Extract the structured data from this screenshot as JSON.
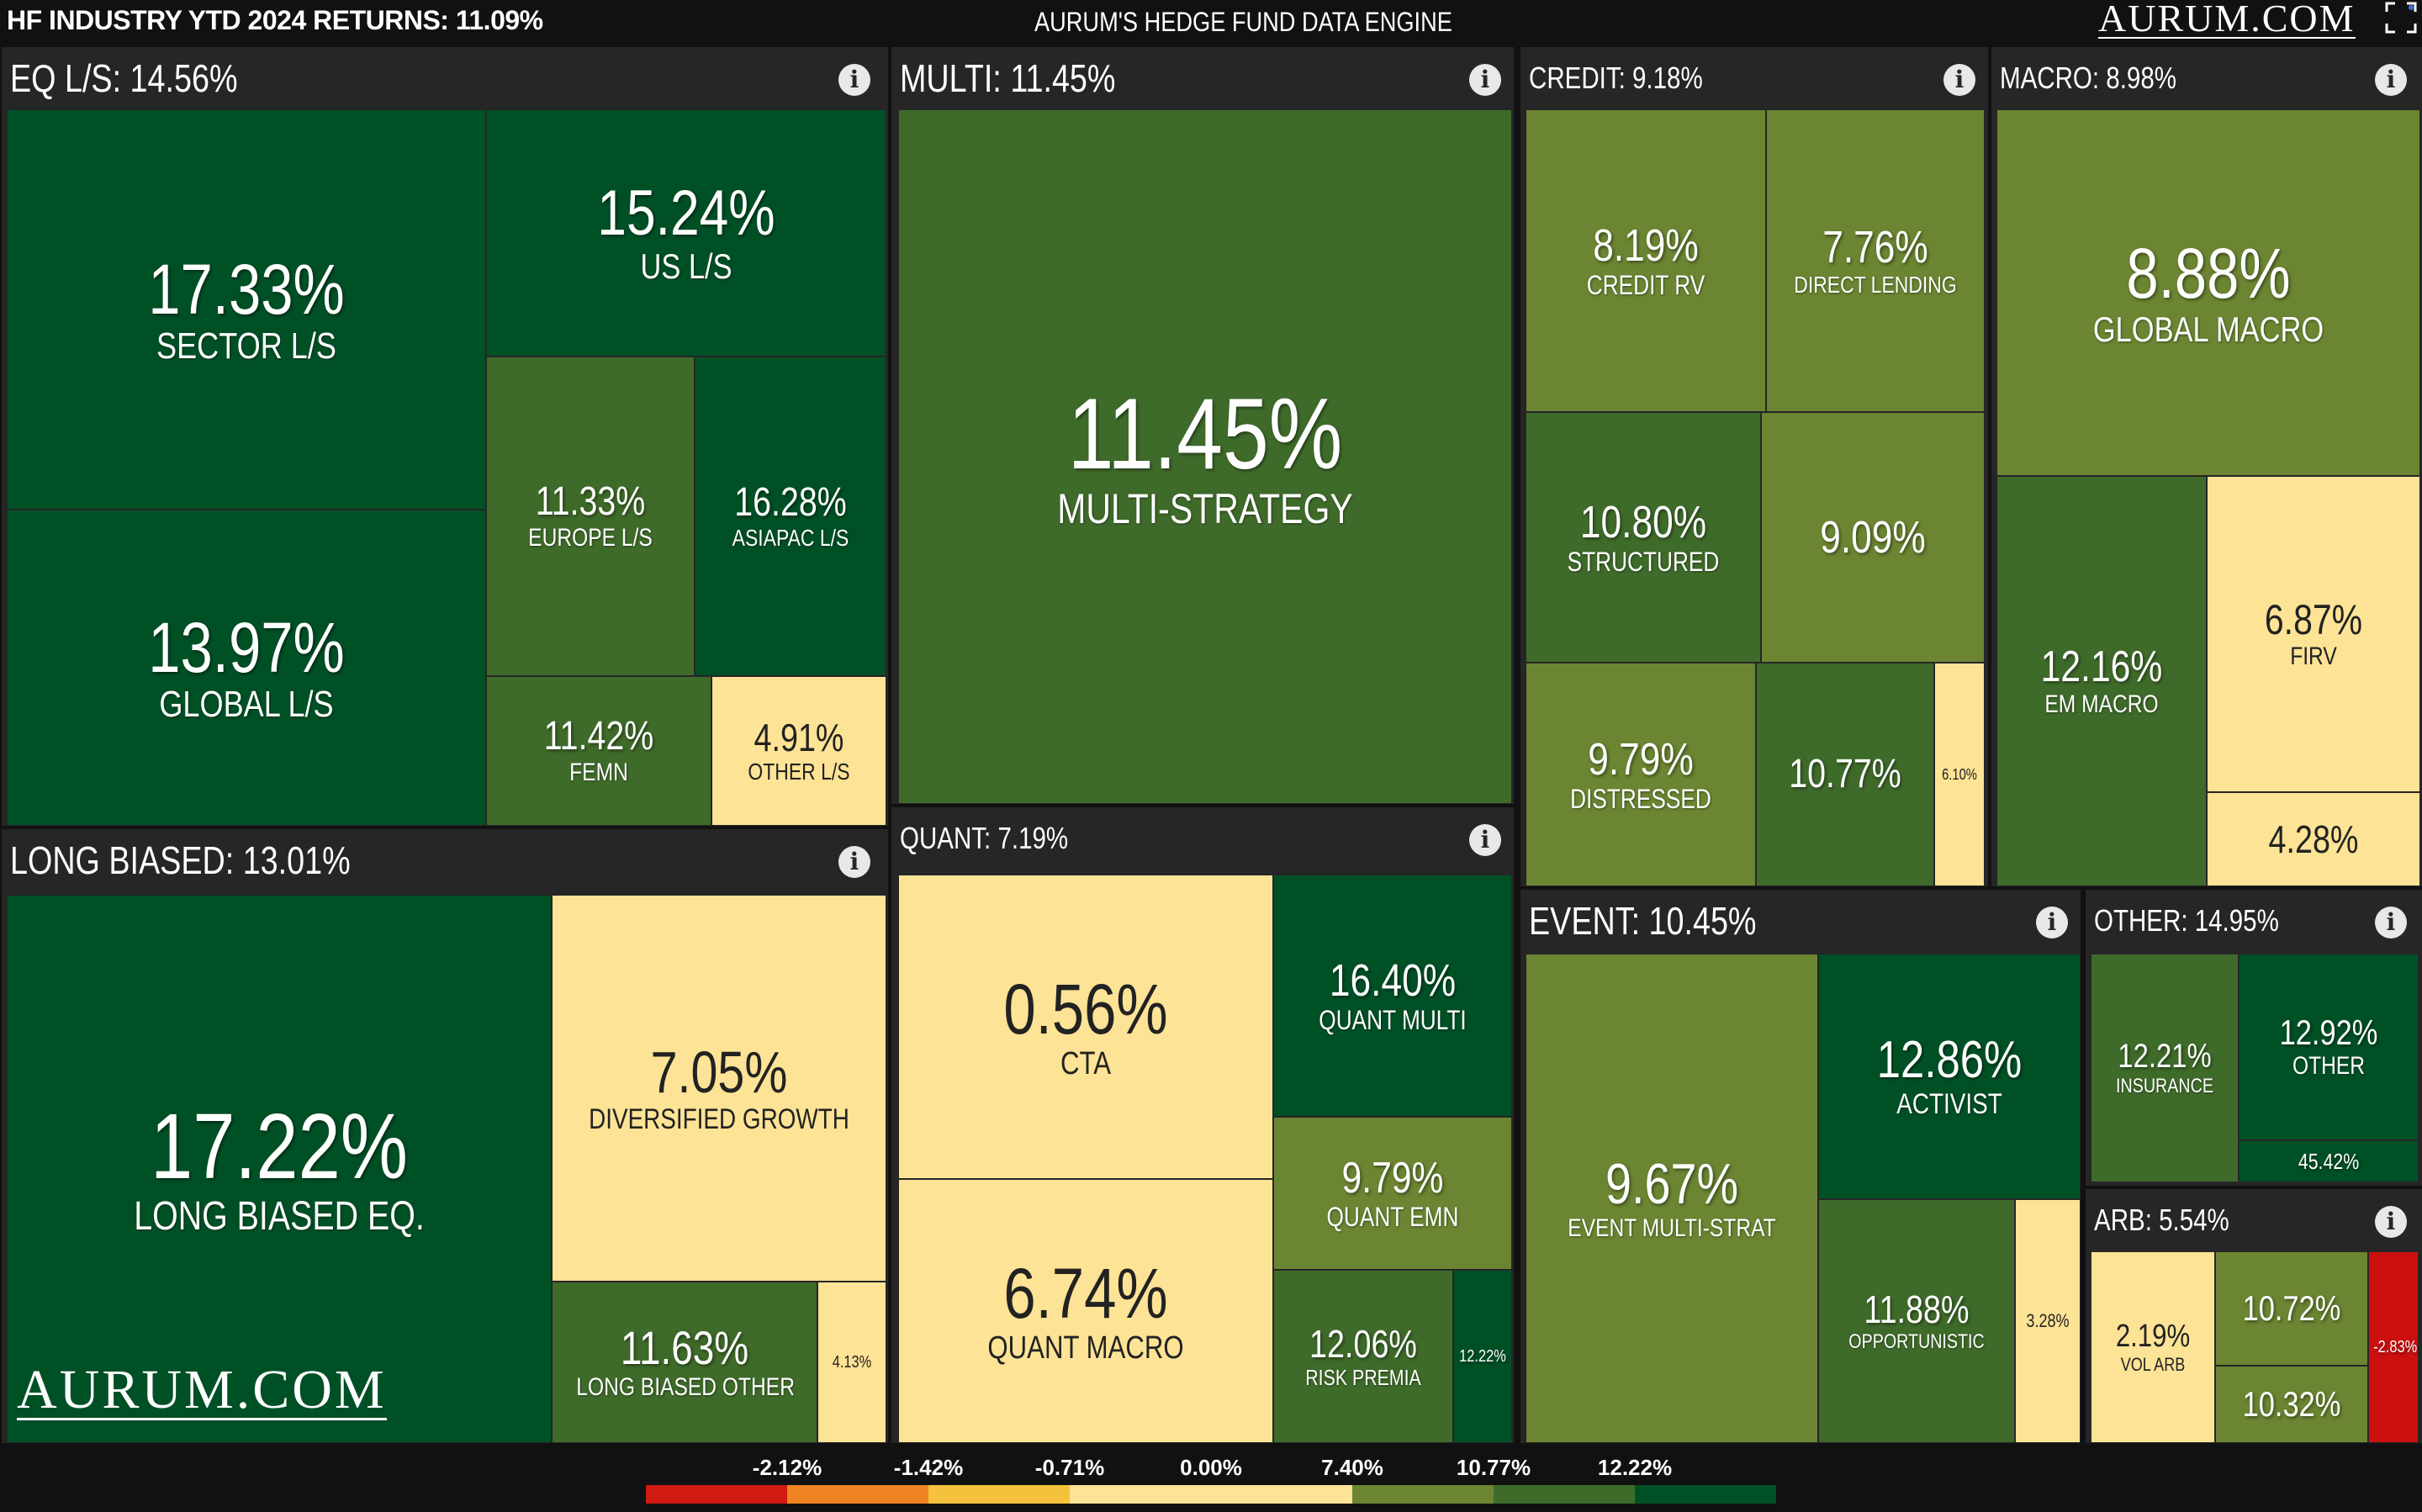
{
  "header": {
    "left_title": "HF INDUSTRY YTD 2024 RETURNS: 11.09%",
    "center_title": "AURUM'S HEDGE FUND DATA ENGINE",
    "logo_text": "AURUM.COM",
    "fullscreen_icon": "expand-icon"
  },
  "watermark": "AURUM.COM",
  "colors": {
    "dark_green": "#005026",
    "mid_green": "#3f6b2a",
    "olive": "#6b8532",
    "pale_yellow": "#fde395",
    "red": "#cc1010",
    "panel": "#262626"
  },
  "chart_data": {
    "type": "treemap",
    "title": "HF INDUSTRY YTD 2024 RETURNS: 11.09%",
    "sectors": [
      {
        "name": "EQ L/S",
        "title": "EQ L/S: 14.56%",
        "value": 14.56,
        "children": [
          {
            "label": "SECTOR L/S",
            "value": "17.33%"
          },
          {
            "label": "GLOBAL L/S",
            "value": "13.97%"
          },
          {
            "label": "US L/S",
            "value": "15.24%"
          },
          {
            "label": "EUROPE L/S",
            "value": "11.33%"
          },
          {
            "label": "ASIAPAC L/S",
            "value": "16.28%"
          },
          {
            "label": "FEMN",
            "value": "11.42%"
          },
          {
            "label": "OTHER L/S",
            "value": "4.91%"
          }
        ]
      },
      {
        "name": "MULTI",
        "title": "MULTI: 11.45%",
        "value": 11.45,
        "children": [
          {
            "label": "MULTI-STRATEGY",
            "value": "11.45%"
          }
        ]
      },
      {
        "name": "CREDIT",
        "title": "CREDIT: 9.18%",
        "value": 9.18,
        "children": [
          {
            "label": "CREDIT RV",
            "value": "8.19%"
          },
          {
            "label": "DIRECT LENDING",
            "value": "7.76%"
          },
          {
            "label": "STRUCTURED",
            "value": "10.80%"
          },
          {
            "label": "",
            "value": "9.09%"
          },
          {
            "label": "DISTRESSED",
            "value": "9.79%"
          },
          {
            "label": "",
            "value": "10.77%"
          },
          {
            "label": "",
            "value": "6.10%"
          }
        ]
      },
      {
        "name": "MACRO",
        "title": "MACRO: 8.98%",
        "value": 8.98,
        "children": [
          {
            "label": "GLOBAL MACRO",
            "value": "8.88%"
          },
          {
            "label": "EM MACRO",
            "value": "12.16%"
          },
          {
            "label": "FIRV",
            "value": "6.87%"
          },
          {
            "label": "",
            "value": "4.28%"
          }
        ]
      },
      {
        "name": "LONG BIASED",
        "title": "LONG BIASED: 13.01%",
        "value": 13.01,
        "children": [
          {
            "label": "LONG BIASED EQ.",
            "value": "17.22%"
          },
          {
            "label": "DIVERSIFIED GROWTH",
            "value": "7.05%"
          },
          {
            "label": "LONG BIASED OTHER",
            "value": "11.63%"
          },
          {
            "label": "",
            "value": "4.13%"
          }
        ]
      },
      {
        "name": "QUANT",
        "title": "QUANT: 7.19%",
        "value": 7.19,
        "children": [
          {
            "label": "CTA",
            "value": "0.56%"
          },
          {
            "label": "QUANT MACRO",
            "value": "6.74%"
          },
          {
            "label": "QUANT MULTI",
            "value": "16.40%"
          },
          {
            "label": "QUANT EMN",
            "value": "9.79%"
          },
          {
            "label": "RISK PREMIA",
            "value": "12.06%"
          },
          {
            "label": "",
            "value": "12.22%"
          }
        ]
      },
      {
        "name": "EVENT",
        "title": "EVENT: 10.45%",
        "value": 10.45,
        "children": [
          {
            "label": "EVENT MULTI-STRAT",
            "value": "9.67%"
          },
          {
            "label": "ACTIVIST",
            "value": "12.86%"
          },
          {
            "label": "OPPORTUNISTIC",
            "value": "11.88%"
          },
          {
            "label": "",
            "value": "3.28%"
          }
        ]
      },
      {
        "name": "OTHER",
        "title": "OTHER: 14.95%",
        "value": 14.95,
        "children": [
          {
            "label": "INSURANCE",
            "value": "12.21%"
          },
          {
            "label": "OTHER",
            "value": "12.92%"
          },
          {
            "label": "",
            "value": "45.42%"
          }
        ]
      },
      {
        "name": "ARB",
        "title": "ARB: 5.54%",
        "value": 5.54,
        "children": [
          {
            "label": "VOL ARB",
            "value": "2.19%"
          },
          {
            "label": "",
            "value": "10.72%"
          },
          {
            "label": "",
            "value": "10.32%"
          },
          {
            "label": "",
            "value": "-2.83%"
          }
        ]
      }
    ],
    "legend": {
      "labels": [
        "-2.12%",
        "-1.42%",
        "-0.71%",
        "0.00%",
        "7.40%",
        "10.77%",
        "12.22%"
      ],
      "colors": [
        "#d01a12",
        "#ee8422",
        "#f4c23c",
        "#fde395",
        "#fde395",
        "#6b8532",
        "#3f6b2a",
        "#005026"
      ]
    }
  }
}
